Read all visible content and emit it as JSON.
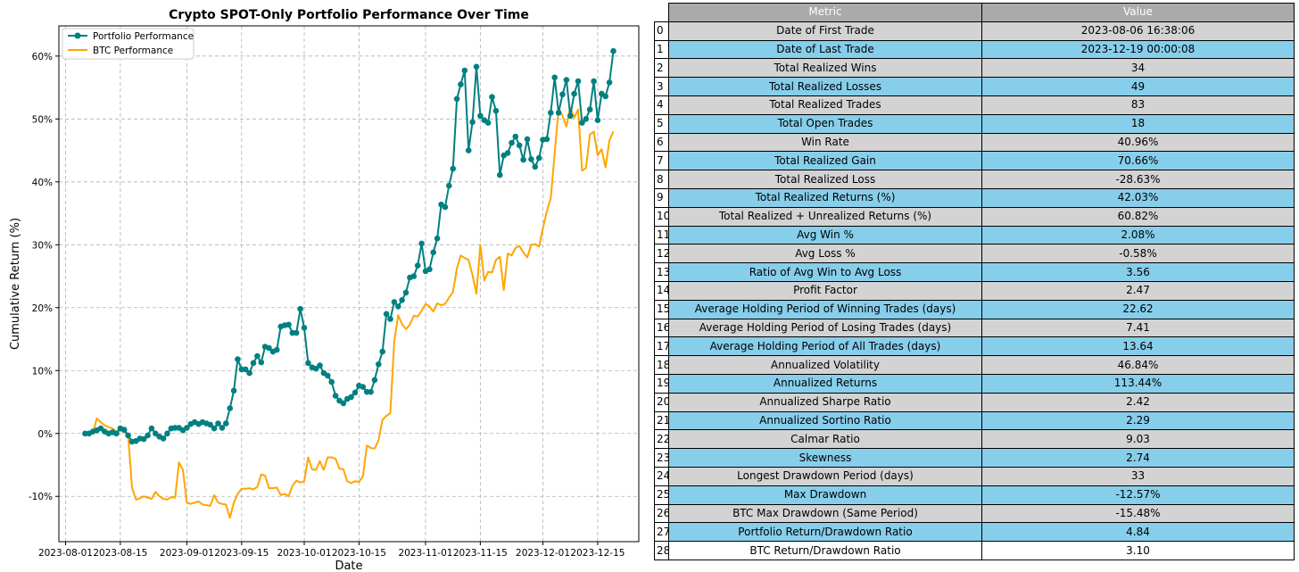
{
  "chart_data": {
    "type": "line",
    "title": "Crypto SPOT-Only Portfolio Performance Over Time",
    "xlabel": "Date",
    "ylabel": "Cumulative Return (%)",
    "grid": true,
    "legend_position": "top-left",
    "x_ticks": [
      "2023-08-01",
      "2023-08-15",
      "2023-09-01",
      "2023-09-15",
      "2023-10-01",
      "2023-10-15",
      "2023-11-01",
      "2023-11-15",
      "2023-12-01",
      "2023-12-15"
    ],
    "x_tick_days": [
      -5,
      9,
      26,
      40,
      56,
      70,
      87,
      101,
      117,
      131
    ],
    "y_ticks": [
      -10,
      0,
      10,
      20,
      30,
      40,
      50,
      60
    ],
    "y_tick_labels": [
      "-10%",
      "0%",
      "10%",
      "20%",
      "30%",
      "40%",
      "50%",
      "60%"
    ],
    "xlim": [
      -6.7,
      141.5
    ],
    "ylim": [
      -17.2,
      64.8
    ],
    "x_origin_date": "2023-08-06",
    "series": [
      {
        "name": "Portfolio Performance",
        "color": "#008080",
        "marker": "circle",
        "days": [
          0,
          1,
          2,
          3,
          4,
          5,
          6,
          7,
          8,
          9,
          10,
          11,
          12,
          13,
          14,
          15,
          16,
          17,
          18,
          19,
          20,
          21,
          22,
          23,
          24,
          25,
          26,
          27,
          28,
          29,
          30,
          31,
          32,
          33,
          34,
          35,
          36,
          37,
          38,
          39,
          40,
          41,
          42,
          43,
          44,
          45,
          46,
          47,
          48,
          49,
          50,
          51,
          52,
          53,
          54,
          55,
          56,
          57,
          58,
          59,
          60,
          61,
          62,
          63,
          64,
          65,
          66,
          67,
          68,
          69,
          70,
          71,
          72,
          73,
          74,
          75,
          76,
          77,
          78,
          79,
          80,
          81,
          82,
          83,
          84,
          85,
          86,
          87,
          88,
          89,
          90,
          91,
          92,
          93,
          94,
          95,
          96,
          97,
          98,
          99,
          100,
          101,
          102,
          103,
          104,
          105,
          106,
          107,
          108,
          109,
          110,
          111,
          112,
          113,
          114,
          115,
          116,
          117,
          118,
          119,
          120,
          121,
          122,
          123,
          124,
          125,
          126,
          127,
          128,
          129,
          130,
          131,
          132,
          133,
          134,
          135
        ],
        "values": [
          0,
          0,
          0.3,
          0.5,
          0.8,
          0.3,
          0,
          0.2,
          0,
          0.8,
          0.6,
          -0.3,
          -1.3,
          -1.2,
          -0.8,
          -0.9,
          -0.3,
          0.8,
          0,
          -0.5,
          -0.8,
          0,
          0.8,
          0.9,
          0.9,
          0.5,
          0.9,
          1.5,
          1.8,
          1.5,
          1.8,
          1.6,
          1.4,
          0.8,
          1.6,
          0.9,
          1.6,
          4,
          6.8,
          11.8,
          10.2,
          10.2,
          9.6,
          11.2,
          12.3,
          11.3,
          13.8,
          13.6,
          13,
          13.3,
          17,
          17.2,
          17.3,
          16,
          16,
          19.8,
          16.8,
          11.2,
          10.5,
          10.3,
          10.8,
          9.6,
          9.2,
          8.2,
          6,
          5.2,
          4.8,
          5.5,
          5.8,
          6.5,
          7.6,
          7.4,
          6.6,
          6.6,
          8.5,
          11,
          13,
          19,
          18.2,
          20.9,
          20.2,
          21.2,
          22.4,
          24.8,
          25,
          26.7,
          30.2,
          25.8,
          26.1,
          28.8,
          31,
          36.4,
          36,
          39.4,
          42.1,
          53.2,
          55.5,
          57.7,
          45,
          49.5,
          58.3,
          50.5,
          49.8,
          49.4,
          53.5,
          51.3,
          41.1,
          44.2,
          44.6,
          46.2,
          47.2,
          45.8,
          43.5,
          46.8,
          43.6,
          42.4,
          43.8,
          46.7,
          46.8,
          51,
          56.6,
          51,
          53.9,
          56.2,
          50.5,
          54,
          56,
          49.4,
          50,
          51.5,
          56,
          49.8,
          54,
          53.6,
          55.8,
          60.8
        ]
      },
      {
        "name": "BTC Performance",
        "color": "#ffa500",
        "days": [
          0,
          1,
          2,
          3,
          4,
          5,
          6,
          7,
          8,
          9,
          10,
          11,
          12,
          13,
          14,
          15,
          16,
          17,
          18,
          19,
          20,
          21,
          22,
          23,
          24,
          25,
          26,
          27,
          28,
          29,
          30,
          31,
          32,
          33,
          34,
          35,
          36,
          37,
          38,
          39,
          40,
          41,
          42,
          43,
          44,
          45,
          46,
          47,
          48,
          49,
          50,
          51,
          52,
          53,
          54,
          55,
          56,
          57,
          58,
          59,
          60,
          61,
          62,
          63,
          64,
          65,
          66,
          67,
          68,
          69,
          70,
          71,
          72,
          73,
          74,
          75,
          76,
          77,
          78,
          79,
          80,
          81,
          82,
          83,
          84,
          85,
          86,
          87,
          88,
          89,
          90,
          91,
          92,
          93,
          94,
          95,
          96,
          97,
          98,
          99,
          100,
          101,
          102,
          103,
          104,
          105,
          106,
          107,
          108,
          109,
          110,
          111,
          112,
          113,
          114,
          115,
          116,
          117,
          118,
          119,
          120,
          121,
          122,
          123,
          124,
          125,
          126,
          127,
          128,
          129,
          130,
          131,
          132,
          133,
          134,
          135
        ],
        "values": [
          0,
          0,
          0,
          2.4,
          1.8,
          1.3,
          1,
          0.8,
          0.3,
          0.5,
          0.2,
          -0.2,
          -8.6,
          -10.5,
          -10.3,
          -10,
          -10.2,
          -10.4,
          -9.3,
          -10,
          -10.4,
          -10.5,
          -10.1,
          -10.2,
          -4.6,
          -5.8,
          -11,
          -11.2,
          -11,
          -10.8,
          -11.3,
          -11.4,
          -11.5,
          -9.8,
          -11,
          -11.2,
          -11.3,
          -13.4,
          -11,
          -9.6,
          -8.8,
          -8.8,
          -8.7,
          -8.9,
          -8.5,
          -6.5,
          -6.7,
          -8.7,
          -8.7,
          -8.6,
          -9.8,
          -9.6,
          -10,
          -8.3,
          -7.5,
          -7.8,
          -7.6,
          -3.8,
          -5.7,
          -5.8,
          -4.4,
          -5.8,
          -3.8,
          -3.8,
          -4,
          -5.6,
          -5.7,
          -7.6,
          -7.9,
          -7.6,
          -7.7,
          -6.8,
          -1.9,
          -2.3,
          -2.4,
          -1.1,
          2.2,
          2.8,
          3.2,
          14.7,
          18.8,
          17.4,
          16.6,
          17.3,
          18.7,
          18.6,
          19.5,
          20.6,
          20.2,
          19.4,
          20.7,
          20.4,
          20.6,
          21.6,
          22.5,
          26.2,
          28.3,
          27.9,
          27.6,
          25.2,
          22.2,
          30,
          24.3,
          25.7,
          25.6,
          27.6,
          28.1,
          22.8,
          28.6,
          28.3,
          29.5,
          29.8,
          28.8,
          28,
          30,
          30.1,
          29.7,
          32.6,
          35.3,
          37.4,
          44.5,
          51.7,
          50.5,
          48.8,
          51.8,
          50.2,
          51.5,
          41.8,
          42.2,
          47.5,
          48,
          44.2,
          45.2,
          42.3,
          46.6,
          48
        ]
      }
    ]
  },
  "table": {
    "headers": [
      "Metric",
      "Value"
    ],
    "rows": [
      {
        "index": "0",
        "metric": "Date of First Trade",
        "value": "2023-08-06 16:38:06"
      },
      {
        "index": "1",
        "metric": "Date of Last Trade",
        "value": "2023-12-19 00:00:08"
      },
      {
        "index": "2",
        "metric": "Total Realized Wins",
        "value": "34"
      },
      {
        "index": "3",
        "metric": "Total Realized Losses",
        "value": "49"
      },
      {
        "index": "4",
        "metric": "Total Realized Trades",
        "value": "83"
      },
      {
        "index": "5",
        "metric": "Total Open Trades",
        "value": "18"
      },
      {
        "index": "6",
        "metric": "Win Rate",
        "value": "40.96%"
      },
      {
        "index": "7",
        "metric": "Total Realized Gain",
        "value": "70.66%"
      },
      {
        "index": "8",
        "metric": "Total Realized Loss",
        "value": "-28.63%"
      },
      {
        "index": "9",
        "metric": "Total Realized Returns (%)",
        "value": "42.03%"
      },
      {
        "index": "10",
        "metric": "Total Realized + Unrealized Returns (%)",
        "value": "60.82%"
      },
      {
        "index": "11",
        "metric": "Avg Win %",
        "value": "2.08%"
      },
      {
        "index": "12",
        "metric": "Avg Loss %",
        "value": "-0.58%"
      },
      {
        "index": "13",
        "metric": "Ratio of Avg Win to Avg Loss",
        "value": "3.56"
      },
      {
        "index": "14",
        "metric": "Profit Factor",
        "value": "2.47"
      },
      {
        "index": "15",
        "metric": "Average Holding Period of Winning Trades (days)",
        "value": "22.62"
      },
      {
        "index": "16",
        "metric": "Average Holding Period of Losing Trades (days)",
        "value": "7.41"
      },
      {
        "index": "17",
        "metric": "Average Holding Period of All Trades (days)",
        "value": "13.64"
      },
      {
        "index": "18",
        "metric": "Annualized Volatility",
        "value": "46.84%"
      },
      {
        "index": "19",
        "metric": "Annualized Returns",
        "value": "113.44%"
      },
      {
        "index": "20",
        "metric": "Annualized Sharpe Ratio",
        "value": "2.42"
      },
      {
        "index": "21",
        "metric": "Annualized Sortino Ratio",
        "value": "2.29"
      },
      {
        "index": "22",
        "metric": "Calmar Ratio",
        "value": "9.03"
      },
      {
        "index": "23",
        "metric": "Skewness",
        "value": "2.74"
      },
      {
        "index": "24",
        "metric": "Longest Drawdown Period (days)",
        "value": "33"
      },
      {
        "index": "25",
        "metric": "Max Drawdown",
        "value": "-12.57%"
      },
      {
        "index": "26",
        "metric": "BTC Max Drawdown (Same Period)",
        "value": "-15.48%"
      },
      {
        "index": "27",
        "metric": "Portfolio Return/Drawdown Ratio",
        "value": "4.84"
      },
      {
        "index": "28",
        "metric": "BTC Return/Drawdown Ratio",
        "value": "3.10"
      }
    ]
  }
}
